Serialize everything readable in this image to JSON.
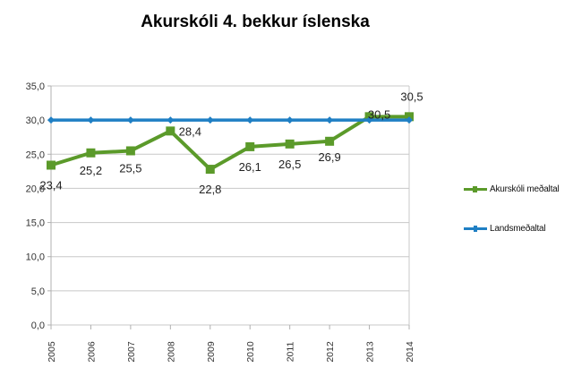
{
  "chart_data": {
    "type": "line",
    "title": "Akurskóli 4. bekkur íslenska",
    "xlabel": "",
    "ylabel": "",
    "categories": [
      "2005",
      "2006",
      "2007",
      "2008",
      "2009",
      "2010",
      "2011",
      "2012",
      "2013",
      "2014"
    ],
    "series": [
      {
        "name": "Akurskóli meðaltal",
        "color": "#5b9a2a",
        "marker": "square",
        "values": [
          23.4,
          25.2,
          25.5,
          28.4,
          22.8,
          26.1,
          26.5,
          26.9,
          30.5,
          30.5
        ],
        "data_labels": [
          "23,4",
          "25,2",
          "25,5",
          "28,4",
          "22,8",
          "26,1",
          "26,5",
          "26,9",
          "30,5",
          "30,5"
        ]
      },
      {
        "name": "Landsmeðaltal",
        "color": "#1f7fc4",
        "marker": "diamond",
        "values": [
          30,
          30,
          30,
          30,
          30,
          30,
          30,
          30,
          30,
          30
        ]
      }
    ],
    "ylim": [
      0,
      35
    ],
    "yticks": [
      0,
      5,
      10,
      15,
      20,
      25,
      30,
      35
    ],
    "ytick_labels": [
      "0,0",
      "5,0",
      "10,0",
      "15,0",
      "20,0",
      "25,0",
      "30,0",
      "35,0"
    ],
    "grid": true,
    "legend_position": "right"
  },
  "legend": {
    "items": [
      {
        "label": "Akurskóli meðaltal",
        "color": "#5b9a2a"
      },
      {
        "label": "Landsmeðaltal",
        "color": "#1f7fc4"
      }
    ]
  }
}
